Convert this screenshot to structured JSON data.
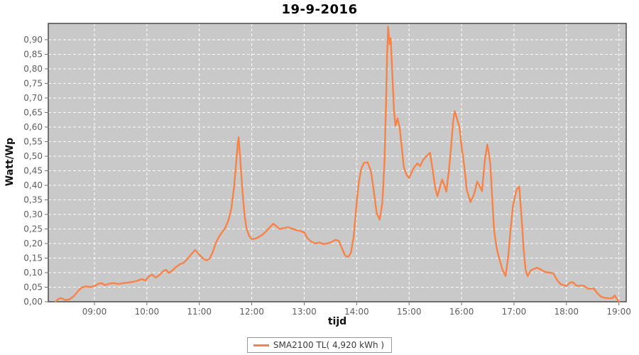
{
  "chart_data": {
    "type": "line",
    "title": "19-9-2016",
    "xlabel": "tijd",
    "ylabel": "Watt/Wp",
    "x_tick_labels": [
      "09:00",
      "10:00",
      "11:00",
      "12:00",
      "13:00",
      "14:00",
      "15:00",
      "16:00",
      "17:00",
      "18:00",
      "19:00"
    ],
    "x_tick_hours": [
      9,
      10,
      11,
      12,
      13,
      14,
      15,
      16,
      17,
      18,
      19
    ],
    "y_tick_labels": [
      "0,00",
      "0,05",
      "0,10",
      "0,15",
      "0,20",
      "0,25",
      "0,30",
      "0,35",
      "0,40",
      "0,45",
      "0,50",
      "0,55",
      "0,60",
      "0,65",
      "0,70",
      "0,75",
      "0,80",
      "0,85",
      "0,90"
    ],
    "y_tick_values": [
      0,
      0.05,
      0.1,
      0.15,
      0.2,
      0.25,
      0.3,
      0.35,
      0.4,
      0.45,
      0.5,
      0.55,
      0.6,
      0.65,
      0.7,
      0.75,
      0.8,
      0.85,
      0.9
    ],
    "xlim_hours": [
      8.12,
      19.14
    ],
    "ylim": [
      0,
      0.956
    ],
    "grid": {
      "color": "#ffffff",
      "style": "dashed",
      "on": true
    },
    "colors": {
      "plot_bg": "#c9c9c9",
      "plot_border": "#4a4a4a",
      "tick": "#6e6e6e",
      "tick_label": "#5e5e5e",
      "series": "#f98247"
    },
    "legend_position": "bottom",
    "series": [
      {
        "name": "SMA2100 TL( 4,920 kWh )",
        "color": "#f98247",
        "points_hours_value": [
          [
            8.26,
            0.001
          ],
          [
            8.3,
            0.008
          ],
          [
            8.36,
            0.013
          ],
          [
            8.44,
            0.006
          ],
          [
            8.52,
            0.008
          ],
          [
            8.6,
            0.018
          ],
          [
            8.68,
            0.035
          ],
          [
            8.75,
            0.048
          ],
          [
            8.83,
            0.053
          ],
          [
            8.92,
            0.051
          ],
          [
            9.0,
            0.054
          ],
          [
            9.08,
            0.062
          ],
          [
            9.14,
            0.064
          ],
          [
            9.2,
            0.057
          ],
          [
            9.28,
            0.062
          ],
          [
            9.37,
            0.064
          ],
          [
            9.45,
            0.061
          ],
          [
            9.55,
            0.064
          ],
          [
            9.65,
            0.066
          ],
          [
            9.75,
            0.069
          ],
          [
            9.83,
            0.073
          ],
          [
            9.9,
            0.078
          ],
          [
            9.97,
            0.073
          ],
          [
            10.03,
            0.086
          ],
          [
            10.1,
            0.093
          ],
          [
            10.17,
            0.083
          ],
          [
            10.24,
            0.092
          ],
          [
            10.31,
            0.105
          ],
          [
            10.36,
            0.11
          ],
          [
            10.42,
            0.099
          ],
          [
            10.49,
            0.108
          ],
          [
            10.56,
            0.12
          ],
          [
            10.63,
            0.129
          ],
          [
            10.7,
            0.134
          ],
          [
            10.78,
            0.148
          ],
          [
            10.85,
            0.164
          ],
          [
            10.92,
            0.178
          ],
          [
            11.0,
            0.162
          ],
          [
            11.07,
            0.149
          ],
          [
            11.14,
            0.142
          ],
          [
            11.2,
            0.149
          ],
          [
            11.26,
            0.172
          ],
          [
            11.31,
            0.2
          ],
          [
            11.37,
            0.222
          ],
          [
            11.43,
            0.238
          ],
          [
            11.5,
            0.256
          ],
          [
            11.56,
            0.283
          ],
          [
            11.61,
            0.32
          ],
          [
            11.66,
            0.39
          ],
          [
            11.7,
            0.47
          ],
          [
            11.73,
            0.54
          ],
          [
            11.75,
            0.565
          ],
          [
            11.78,
            0.495
          ],
          [
            11.82,
            0.385
          ],
          [
            11.86,
            0.3
          ],
          [
            11.9,
            0.252
          ],
          [
            11.95,
            0.226
          ],
          [
            12.0,
            0.215
          ],
          [
            12.07,
            0.217
          ],
          [
            12.14,
            0.223
          ],
          [
            12.21,
            0.231
          ],
          [
            12.28,
            0.243
          ],
          [
            12.35,
            0.257
          ],
          [
            12.41,
            0.268
          ],
          [
            12.46,
            0.261
          ],
          [
            12.53,
            0.25
          ],
          [
            12.61,
            0.253
          ],
          [
            12.69,
            0.256
          ],
          [
            12.77,
            0.251
          ],
          [
            12.85,
            0.246
          ],
          [
            12.93,
            0.243
          ],
          [
            13.0,
            0.238
          ],
          [
            13.06,
            0.219
          ],
          [
            13.13,
            0.207
          ],
          [
            13.21,
            0.2
          ],
          [
            13.29,
            0.204
          ],
          [
            13.37,
            0.198
          ],
          [
            13.45,
            0.201
          ],
          [
            13.53,
            0.206
          ],
          [
            13.6,
            0.213
          ],
          [
            13.66,
            0.209
          ],
          [
            13.72,
            0.184
          ],
          [
            13.78,
            0.158
          ],
          [
            13.84,
            0.154
          ],
          [
            13.89,
            0.168
          ],
          [
            13.94,
            0.22
          ],
          [
            13.99,
            0.32
          ],
          [
            14.04,
            0.41
          ],
          [
            14.09,
            0.458
          ],
          [
            14.14,
            0.477
          ],
          [
            14.21,
            0.479
          ],
          [
            14.27,
            0.45
          ],
          [
            14.32,
            0.39
          ],
          [
            14.38,
            0.305
          ],
          [
            14.44,
            0.282
          ],
          [
            14.49,
            0.34
          ],
          [
            14.53,
            0.48
          ],
          [
            14.56,
            0.68
          ],
          [
            14.58,
            0.84
          ],
          [
            14.6,
            0.945
          ],
          [
            14.63,
            0.885
          ],
          [
            14.65,
            0.905
          ],
          [
            14.68,
            0.78
          ],
          [
            14.71,
            0.66
          ],
          [
            14.74,
            0.605
          ],
          [
            14.78,
            0.63
          ],
          [
            14.82,
            0.598
          ],
          [
            14.86,
            0.53
          ],
          [
            14.9,
            0.462
          ],
          [
            14.95,
            0.436
          ],
          [
            15.0,
            0.425
          ],
          [
            15.05,
            0.446
          ],
          [
            15.11,
            0.465
          ],
          [
            15.16,
            0.475
          ],
          [
            15.21,
            0.466
          ],
          [
            15.27,
            0.488
          ],
          [
            15.33,
            0.5
          ],
          [
            15.4,
            0.512
          ],
          [
            15.45,
            0.452
          ],
          [
            15.5,
            0.39
          ],
          [
            15.54,
            0.362
          ],
          [
            15.59,
            0.395
          ],
          [
            15.63,
            0.42
          ],
          [
            15.68,
            0.396
          ],
          [
            15.71,
            0.378
          ],
          [
            15.76,
            0.452
          ],
          [
            15.8,
            0.53
          ],
          [
            15.84,
            0.62
          ],
          [
            15.87,
            0.655
          ],
          [
            15.91,
            0.63
          ],
          [
            15.96,
            0.6
          ],
          [
            16.0,
            0.533
          ],
          [
            16.05,
            0.468
          ],
          [
            16.1,
            0.385
          ],
          [
            16.17,
            0.342
          ],
          [
            16.24,
            0.37
          ],
          [
            16.3,
            0.413
          ],
          [
            16.35,
            0.395
          ],
          [
            16.39,
            0.38
          ],
          [
            16.44,
            0.48
          ],
          [
            16.49,
            0.54
          ],
          [
            16.52,
            0.51
          ],
          [
            16.55,
            0.468
          ],
          [
            16.58,
            0.37
          ],
          [
            16.62,
            0.245
          ],
          [
            16.67,
            0.183
          ],
          [
            16.72,
            0.148
          ],
          [
            16.78,
            0.11
          ],
          [
            16.84,
            0.088
          ],
          [
            16.89,
            0.155
          ],
          [
            16.93,
            0.24
          ],
          [
            16.98,
            0.33
          ],
          [
            17.05,
            0.385
          ],
          [
            17.1,
            0.395
          ],
          [
            17.14,
            0.3
          ],
          [
            17.18,
            0.19
          ],
          [
            17.22,
            0.11
          ],
          [
            17.26,
            0.088
          ],
          [
            17.32,
            0.108
          ],
          [
            17.38,
            0.113
          ],
          [
            17.44,
            0.117
          ],
          [
            17.52,
            0.11
          ],
          [
            17.6,
            0.102
          ],
          [
            17.68,
            0.1
          ],
          [
            17.75,
            0.097
          ],
          [
            17.82,
            0.075
          ],
          [
            17.89,
            0.06
          ],
          [
            18.0,
            0.054
          ],
          [
            18.07,
            0.066
          ],
          [
            18.12,
            0.067
          ],
          [
            18.2,
            0.054
          ],
          [
            18.27,
            0.056
          ],
          [
            18.33,
            0.055
          ],
          [
            18.42,
            0.044
          ],
          [
            18.52,
            0.046
          ],
          [
            18.59,
            0.029
          ],
          [
            18.66,
            0.017
          ],
          [
            18.74,
            0.013
          ],
          [
            18.82,
            0.012
          ],
          [
            18.88,
            0.013
          ],
          [
            18.92,
            0.022
          ],
          [
            18.96,
            0.01
          ],
          [
            19.0,
            0.001
          ]
        ]
      }
    ]
  }
}
